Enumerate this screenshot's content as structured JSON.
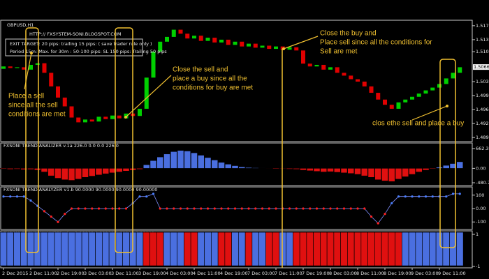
{
  "chart_data": [
    {
      "type": "candlestick",
      "title": "GBPUSD,H1",
      "source": "HTTP:// FXSYSTEM-SONI.BLOGSPOT.COM",
      "info": [
        "EXIT TARGET: 20 pips: trailing 15 pips: ( save trader rule only )",
        "Period 15m: Max. for 30m  : 50-100 pips: SL 150 pips: Trailing 50 pips"
      ],
      "annotations": [
        [
          "Place a sell",
          "since all the sell",
          "conditions are met"
        ],
        [
          "Close the sell and",
          "place a buy since all the",
          "conditions for buy are met"
        ],
        [
          "Close the buy and",
          "Place sell since all the conditions for",
          "Sell are met"
        ],
        [
          "clos ethe sell and place a buy"
        ]
      ],
      "open": [
        1.5062,
        1.5068,
        1.5064,
        1.5066,
        1.506,
        1.5072,
        1.5076,
        1.5052,
        1.5018,
        1.499,
        1.4968,
        1.494,
        1.4928,
        1.4935,
        1.493,
        1.4942,
        1.4936,
        1.4945,
        1.4938,
        1.495,
        1.4944,
        1.4962,
        1.504,
        1.5105,
        1.513,
        1.5142,
        1.516,
        1.515,
        1.5138,
        1.5145,
        1.5132,
        1.514,
        1.5128,
        1.5135,
        1.5122,
        1.513,
        1.5118,
        1.5125,
        1.5115,
        1.512,
        1.5112,
        1.5118,
        1.511,
        1.5116,
        1.5108,
        1.5075,
        1.5068,
        1.5072,
        1.506,
        1.5066,
        1.5052,
        1.5045,
        1.5036,
        1.503,
        1.5018,
        1.5002,
        1.4985,
        1.4972,
        1.4962,
        1.4978,
        1.4985,
        1.4992,
        1.5,
        1.5008,
        1.5015,
        1.5024,
        1.5038,
        1.5052
      ],
      "close": [
        1.5068,
        1.5064,
        1.5066,
        1.506,
        1.5072,
        1.5076,
        1.5052,
        1.5018,
        1.499,
        1.4968,
        1.494,
        1.4928,
        1.4935,
        1.493,
        1.4942,
        1.4936,
        1.4945,
        1.4938,
        1.495,
        1.4944,
        1.4962,
        1.504,
        1.5105,
        1.513,
        1.5142,
        1.516,
        1.515,
        1.5138,
        1.5145,
        1.5132,
        1.514,
        1.5128,
        1.5135,
        1.5122,
        1.513,
        1.5118,
        1.5125,
        1.5115,
        1.512,
        1.5112,
        1.5118,
        1.511,
        1.5116,
        1.5108,
        1.5075,
        1.5068,
        1.5072,
        1.506,
        1.5066,
        1.5052,
        1.5045,
        1.5036,
        1.503,
        1.5018,
        1.5002,
        1.4985,
        1.4972,
        1.4962,
        1.4978,
        1.4985,
        1.4992,
        1.5,
        1.5008,
        1.5015,
        1.5024,
        1.5038,
        1.5052,
        1.5066
      ],
      "up_color": "#00d000",
      "down_color": "#e00000",
      "ylim": [
        1.4885,
        1.5175
      ],
      "yticks": [
        {
          "value": 1.517,
          "label": "1.51700"
        },
        {
          "value": 1.5135,
          "label": "1.51350"
        },
        {
          "value": 1.5105,
          "label": "1.51050"
        },
        {
          "value": 1.503,
          "label": "1.50300"
        },
        {
          "value": 1.4995,
          "label": "1.49950"
        },
        {
          "value": 1.496,
          "label": "1.49600"
        },
        {
          "value": 1.4925,
          "label": "1.49250"
        },
        {
          "value": 1.489,
          "label": "1.48900"
        }
      ],
      "last_price": {
        "value": 1.50665,
        "label": "1.50665"
      }
    },
    {
      "type": "bar",
      "title": "FXSONI TREND ANALIZER v.1a 226.0 0.0 0.0 226.0",
      "values": [
        -20,
        -30,
        -25,
        -40,
        -35,
        -60,
        -120,
        -250,
        -330,
        -380,
        -400,
        -360,
        -300,
        -260,
        -220,
        -180,
        -150,
        -120,
        -90,
        -60,
        -30,
        120,
        260,
        380,
        480,
        560,
        600,
        580,
        520,
        440,
        360,
        280,
        200,
        140,
        90,
        50,
        30,
        20,
        10,
        -10,
        -20,
        -15,
        -25,
        -30,
        -60,
        -80,
        -100,
        -120,
        -110,
        -130,
        -150,
        -170,
        -200,
        -250,
        -300,
        -380,
        -420,
        -440,
        -360,
        -280,
        -200,
        -120,
        -60,
        -20,
        40,
        100,
        160,
        220
      ],
      "positive_color": "#4a6fe0",
      "negative_color": "#e01010",
      "ylim": [
        -480.7,
        662.3
      ],
      "yticks": [
        662.3,
        {
          "value": 0,
          "label": "0.00"
        },
        -480.7
      ]
    },
    {
      "type": "line",
      "title": "FXSONI TREND ANALYZER v1.b 90.0000 90.0000 90.0000 90.00000",
      "values": [
        90,
        90,
        90,
        90,
        60,
        20,
        -20,
        -60,
        -100,
        -40,
        0,
        0,
        0,
        0,
        0,
        0,
        0,
        0,
        0,
        40,
        90,
        90,
        110,
        0,
        0,
        0,
        0,
        0,
        0,
        0,
        0,
        0,
        0,
        0,
        0,
        0,
        0,
        0,
        0,
        0,
        0,
        0,
        0,
        0,
        0,
        0,
        0,
        0,
        0,
        0,
        0,
        0,
        0,
        0,
        -60,
        -110,
        -40,
        40,
        90,
        90,
        90,
        90,
        90,
        90,
        90,
        90,
        110,
        110
      ],
      "positive_color": "#4a7fff",
      "negative_color": "#ff2020",
      "ylim": [
        -130,
        130
      ],
      "yticks": [
        100,
        {
          "value": 0,
          "label": "0.00"
        },
        -100
      ]
    },
    {
      "type": "strip",
      "title": "FXSONI TREND ANALYZER v1.c 1.00000 0.00000 0.00000 0.00000",
      "values": [
        1,
        1,
        1,
        1,
        1,
        1,
        1,
        1,
        1,
        1,
        1,
        1,
        1,
        1,
        1,
        1,
        1,
        1,
        1,
        1,
        1,
        -1,
        -1,
        -1,
        1,
        1,
        1,
        -1,
        -1,
        1,
        1,
        1,
        -1,
        -1,
        1,
        1,
        -1,
        1,
        1,
        -1,
        -1,
        1,
        1,
        -1,
        -1,
        -1,
        -1,
        -1,
        -1,
        -1,
        -1,
        -1,
        -1,
        -1,
        -1,
        -1,
        -1,
        -1,
        -1,
        1,
        1,
        1,
        1,
        1,
        1,
        1,
        1,
        1
      ],
      "positive_color": "#4a6fe0",
      "negative_color": "#e01010",
      "ylim": [
        -1,
        1
      ],
      "yticks": [
        1,
        -1
      ],
      "categories": [
        "2 Dec 2015",
        null,
        null,
        null,
        "2 Dec 11:00",
        null,
        null,
        null,
        "2 Dec 19:00",
        null,
        null,
        null,
        "3 Dec 03:00",
        null,
        null,
        null,
        "3 Dec 11:00",
        null,
        null,
        null,
        "3 Dec 19:00",
        null,
        null,
        null,
        "4 Dec 03:00",
        null,
        null,
        null,
        "4 Dec 11:00",
        null,
        null,
        null,
        "4 Dec 19:00",
        null,
        null,
        null,
        "7 Dec 03:00",
        null,
        null,
        null,
        "7 Dec 11:00",
        null,
        null,
        null,
        "7 Dec 19:00",
        null,
        null,
        null,
        "8 Dec 03:00",
        null,
        null,
        null,
        "8 Dec 11:00",
        null,
        null,
        null,
        "8 Dec 19:00",
        null,
        null,
        null,
        "9 Dec 03:00",
        null,
        null,
        null,
        "9 Dec 11:00",
        null,
        null,
        null
      ]
    }
  ]
}
